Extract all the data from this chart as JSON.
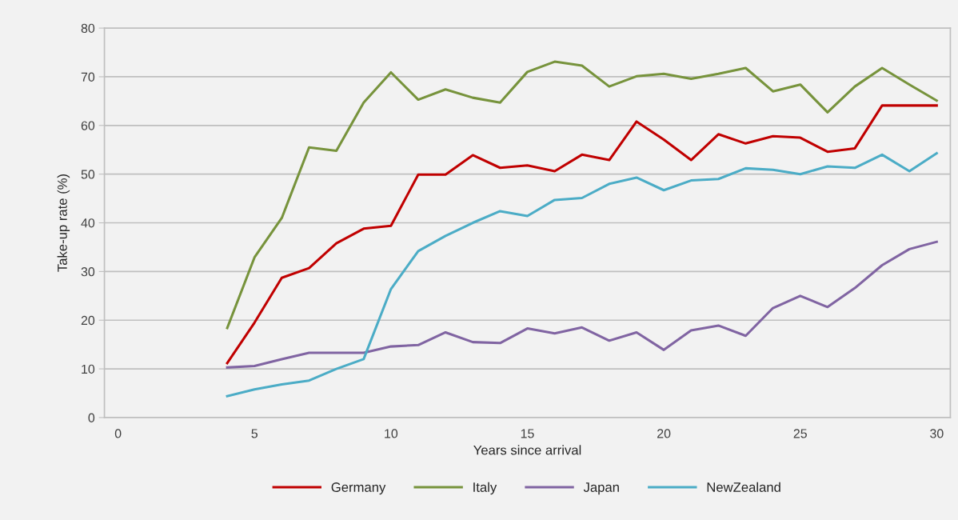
{
  "chart_data": {
    "type": "line",
    "xlabel": "Years since arrival",
    "ylabel": "Take-up rate (%)",
    "x": [
      4,
      5,
      6,
      7,
      8,
      9,
      10,
      11,
      12,
      13,
      14,
      15,
      16,
      17,
      18,
      19,
      20,
      21,
      22,
      23,
      24,
      25,
      26,
      27,
      28,
      29,
      30
    ],
    "series": [
      {
        "name": "Germany",
        "color": "#c00000",
        "values": [
          11.2,
          19.5,
          28.7,
          30.7,
          35.8,
          38.8,
          39.4,
          49.9,
          49.9,
          53.9,
          51.3,
          51.8,
          50.6,
          54.0,
          52.9,
          60.8,
          57.1,
          52.9,
          58.2,
          56.3,
          57.8,
          57.5,
          54.6,
          55.3,
          64.1,
          64.1,
          64.1
        ]
      },
      {
        "name": "Italy",
        "color": "#77933c",
        "values": [
          18.4,
          32.9,
          41.0,
          55.5,
          54.8,
          64.7,
          70.9,
          65.3,
          67.4,
          65.7,
          64.7,
          71.0,
          73.1,
          72.3,
          68.0,
          70.1,
          70.6,
          69.6,
          70.6,
          71.8,
          67.0,
          68.4,
          62.7,
          68.0,
          71.8,
          68.4,
          65.1
        ]
      },
      {
        "name": "Japan",
        "color": "#8064a2",
        "values": [
          10.3,
          10.6,
          12.0,
          13.3,
          13.3,
          13.3,
          14.6,
          14.9,
          17.5,
          15.5,
          15.3,
          18.3,
          17.3,
          18.5,
          15.8,
          17.5,
          13.9,
          17.9,
          18.9,
          16.8,
          22.5,
          25.0,
          22.7,
          26.6,
          31.3,
          34.6,
          36.1
        ]
      },
      {
        "name": "NewZealand",
        "color": "#4bacc6",
        "values": [
          4.4,
          5.8,
          6.8,
          7.6,
          10.0,
          12.0,
          26.4,
          34.2,
          37.3,
          40.0,
          42.4,
          41.4,
          44.7,
          45.1,
          48.0,
          49.3,
          46.7,
          48.7,
          49.0,
          51.2,
          50.9,
          50.0,
          51.6,
          51.3,
          54.0,
          50.6,
          54.3
        ]
      }
    ],
    "xlim": [
      -0.5,
      30.5
    ],
    "xticks": [
      0,
      5,
      10,
      15,
      20,
      25,
      30
    ],
    "ylim": [
      0,
      80
    ],
    "yticks": [
      0,
      10,
      20,
      30,
      40,
      50,
      60,
      70,
      80
    ],
    "grid": "y",
    "legend": "bottom",
    "marker": "none",
    "line_style": "solid"
  }
}
